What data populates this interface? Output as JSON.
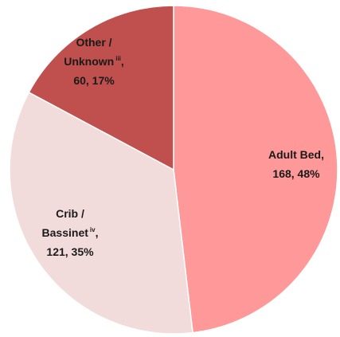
{
  "chart_data": {
    "type": "pie",
    "categories": [
      [
        "Adult Bed"
      ],
      [
        "Crib /",
        "Bassinet"
      ],
      [
        "Other /",
        "Unknown"
      ]
    ],
    "notes": [
      null,
      "iv",
      "iii"
    ],
    "separator": ",",
    "values": [
      168,
      121,
      60
    ],
    "value_labels": [
      "168, 48%",
      "121, 35%",
      "60, 17%"
    ],
    "colors": [
      "#ff9999",
      "#f2dcdb",
      "#c0504d"
    ]
  }
}
